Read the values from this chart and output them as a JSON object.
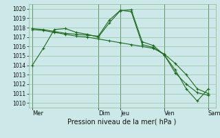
{
  "xlabel": "Pression niveau de la mer( hPa )",
  "ylim": [
    1009.5,
    1020.5
  ],
  "yticks": [
    1010,
    1011,
    1012,
    1013,
    1014,
    1015,
    1016,
    1017,
    1018,
    1019,
    1020
  ],
  "bg_color": "#cce8e8",
  "grid_color": "#88bb88",
  "line_color": "#1a6b1a",
  "vline_color": "#336633",
  "day_labels": [
    "Mer",
    "Dim",
    "Jeu",
    "Ven",
    "Sam"
  ],
  "day_positions": [
    0,
    36,
    48,
    72,
    96
  ],
  "vline_positions": [
    0,
    36,
    48,
    72,
    96
  ],
  "xlim": [
    -2,
    100
  ],
  "line1_x": [
    0,
    6,
    12,
    18,
    24,
    30,
    36,
    42,
    48,
    54,
    60,
    66,
    72,
    78,
    84,
    90,
    96
  ],
  "line1_y": [
    1014.0,
    1015.8,
    1017.8,
    1017.9,
    1017.5,
    1017.3,
    1017.0,
    1018.5,
    1019.8,
    1019.9,
    1016.5,
    1016.1,
    1015.1,
    1013.2,
    1012.0,
    1011.1,
    1010.8
  ],
  "line2_x": [
    0,
    6,
    12,
    18,
    24,
    30,
    36,
    42,
    48,
    54,
    60,
    66,
    72,
    78,
    84,
    90,
    96
  ],
  "line2_y": [
    1017.8,
    1017.7,
    1017.5,
    1017.3,
    1017.1,
    1017.0,
    1016.8,
    1016.6,
    1016.4,
    1016.2,
    1016.0,
    1015.8,
    1015.2,
    1014.2,
    1013.0,
    1011.5,
    1011.0
  ],
  "line3_x": [
    0,
    6,
    12,
    18,
    24,
    30,
    36,
    42,
    48,
    54,
    60,
    66,
    72,
    78,
    84,
    90,
    96
  ],
  "line3_y": [
    1017.9,
    1017.8,
    1017.6,
    1017.4,
    1017.3,
    1017.2,
    1017.1,
    1018.8,
    1019.85,
    1019.7,
    1016.2,
    1015.9,
    1015.1,
    1013.5,
    1011.5,
    1010.2,
    1011.5
  ],
  "ylabel_fontsize": 5.5,
  "xlabel_fontsize": 7.0,
  "tick_labelsize": 5.5
}
